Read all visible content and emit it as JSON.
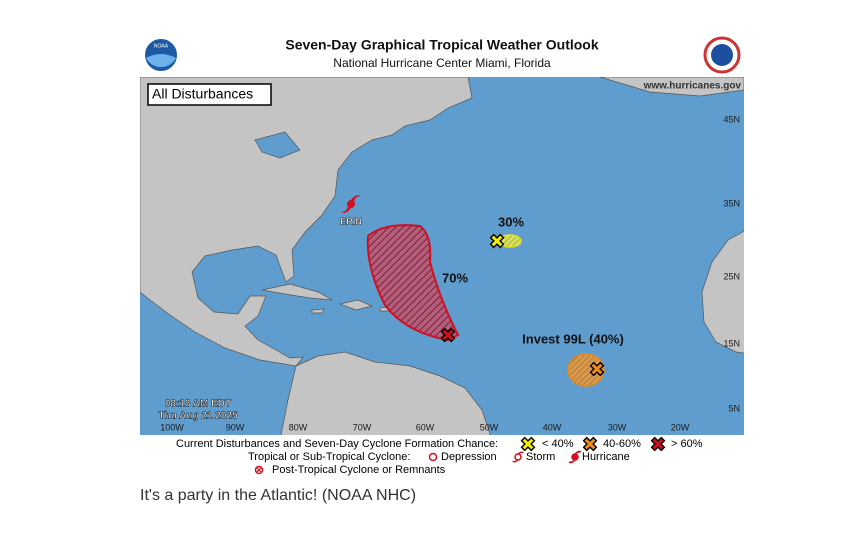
{
  "header": {
    "title": "Seven-Day Graphical Tropical Weather Outlook",
    "subtitle": "National Hurricane Center  Miami, Florida",
    "noaa_logo": "NOAA"
  },
  "map": {
    "panel_label": "All Disturbances",
    "website": "www.hurricanes.gov",
    "lat_labels": [
      "45N",
      "35N",
      "25N",
      "15N",
      "5N"
    ],
    "lon_labels": [
      "100W",
      "90W",
      "80W",
      "70W",
      "60W",
      "50W",
      "40W",
      "30W",
      "20W"
    ],
    "timestamp": [
      "08:18 AM EDT",
      "Thu Aug 21 2025"
    ],
    "storms": [
      {
        "label": "ERIN"
      }
    ],
    "disturbances": [
      {
        "label": "70%"
      },
      {
        "label": "30%"
      },
      {
        "label": "Invest 99L (40%)"
      }
    ]
  },
  "legend": {
    "line1": "Current Disturbances and Seven-Day Cyclone Formation Chance:",
    "chances": [
      "< 40%",
      "40-60%",
      "> 60%"
    ],
    "line2": "Tropical or Sub-Tropical Cyclone:",
    "cyclone_types": [
      "Depression",
      "Storm",
      "Hurricane"
    ],
    "line3": "Post-Tropical Cyclone or Remnants"
  },
  "caption": "It's a party in the Atlantic! (NOAA NHC)"
}
